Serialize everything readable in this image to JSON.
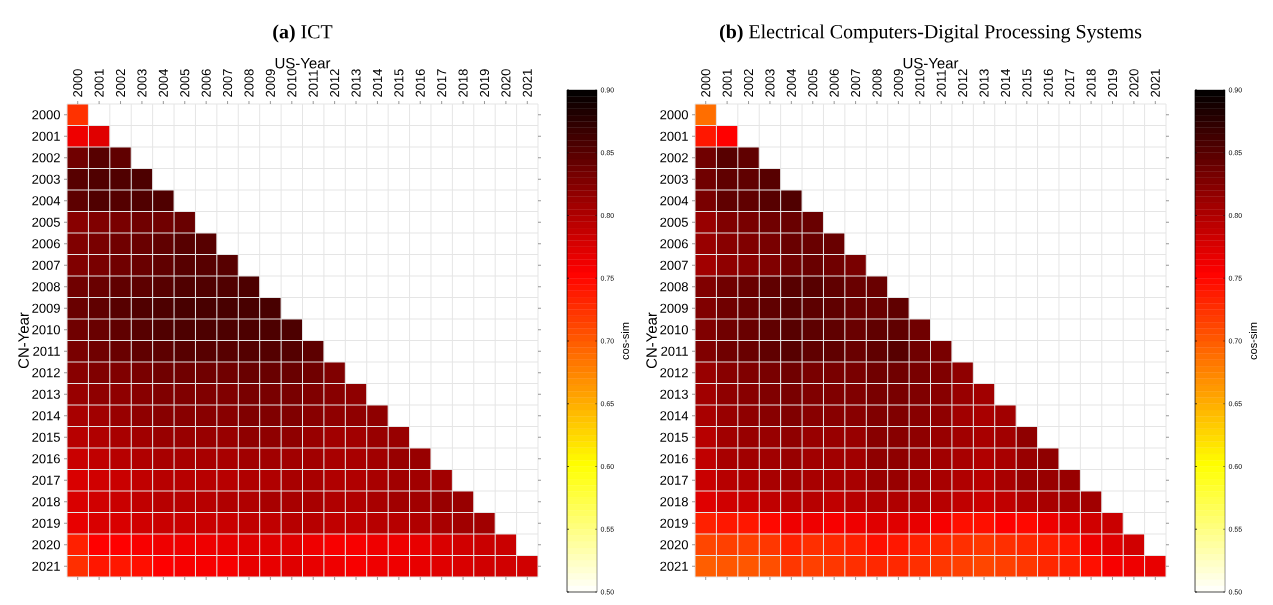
{
  "chart_data": [
    {
      "type": "heatmap",
      "title": "**(a)** ICT",
      "xlabel": "US-Year",
      "ylabel": "CN-Year",
      "clabel": "cos-sim",
      "grid": true,
      "categories": [
        "2000",
        "2001",
        "2002",
        "2003",
        "2004",
        "2005",
        "2006",
        "2007",
        "2008",
        "2009",
        "2010",
        "2011",
        "2012",
        "2013",
        "2014",
        "2015",
        "2016",
        "2017",
        "2018",
        "2019",
        "2020",
        "2021"
      ],
      "y_categories": [
        "2000",
        "2001",
        "2002",
        "2003",
        "2004",
        "2005",
        "2006",
        "2007",
        "2008",
        "2009",
        "2010",
        "2011",
        "2012",
        "2013",
        "2014",
        "2015",
        "2016",
        "2017",
        "2018",
        "2019",
        "2020",
        "2021"
      ],
      "clim": [
        0.5,
        0.9
      ],
      "cticks": [
        {
          "value": 0.5,
          "label": "0.50"
        },
        {
          "value": 0.55,
          "label": "0.55"
        },
        {
          "value": 0.6,
          "label": "0.60"
        },
        {
          "value": 0.65,
          "label": "0.65"
        },
        {
          "value": 0.7,
          "label": "0.70"
        },
        {
          "value": 0.75,
          "label": "0.75"
        },
        {
          "value": 0.8,
          "label": "0.80"
        },
        {
          "value": 0.85,
          "label": "0.85"
        },
        {
          "value": 0.9,
          "label": "0.90"
        }
      ],
      "cells": [
        [
          0.724,
          null,
          null,
          null,
          null,
          null,
          null,
          null,
          null,
          null,
          null,
          null,
          null,
          null,
          null,
          null,
          null,
          null,
          null,
          null,
          null,
          null
        ],
        [
          0.763,
          0.772,
          null,
          null,
          null,
          null,
          null,
          null,
          null,
          null,
          null,
          null,
          null,
          null,
          null,
          null,
          null,
          null,
          null,
          null,
          null,
          null
        ],
        [
          0.836,
          0.85,
          0.845,
          null,
          null,
          null,
          null,
          null,
          null,
          null,
          null,
          null,
          null,
          null,
          null,
          null,
          null,
          null,
          null,
          null,
          null,
          null
        ],
        [
          0.85,
          0.854,
          0.854,
          0.856,
          null,
          null,
          null,
          null,
          null,
          null,
          null,
          null,
          null,
          null,
          null,
          null,
          null,
          null,
          null,
          null,
          null,
          null
        ],
        [
          0.847,
          0.854,
          0.852,
          0.854,
          0.855,
          null,
          null,
          null,
          null,
          null,
          null,
          null,
          null,
          null,
          null,
          null,
          null,
          null,
          null,
          null,
          null,
          null
        ],
        [
          0.822,
          0.827,
          0.831,
          0.836,
          0.836,
          0.84,
          null,
          null,
          null,
          null,
          null,
          null,
          null,
          null,
          null,
          null,
          null,
          null,
          null,
          null,
          null,
          null
        ],
        [
          0.827,
          0.831,
          0.836,
          0.84,
          0.845,
          0.85,
          0.85,
          null,
          null,
          null,
          null,
          null,
          null,
          null,
          null,
          null,
          null,
          null,
          null,
          null,
          null,
          null
        ],
        [
          0.827,
          0.831,
          0.836,
          0.84,
          0.845,
          0.85,
          0.85,
          0.85,
          null,
          null,
          null,
          null,
          null,
          null,
          null,
          null,
          null,
          null,
          null,
          null,
          null,
          null
        ],
        [
          0.836,
          0.84,
          0.845,
          0.847,
          0.85,
          0.854,
          0.854,
          0.854,
          0.856,
          null,
          null,
          null,
          null,
          null,
          null,
          null,
          null,
          null,
          null,
          null,
          null,
          null
        ],
        [
          0.84,
          0.845,
          0.85,
          0.854,
          0.856,
          0.859,
          0.859,
          0.859,
          0.859,
          0.859,
          null,
          null,
          null,
          null,
          null,
          null,
          null,
          null,
          null,
          null,
          null,
          null
        ],
        [
          0.836,
          0.84,
          0.845,
          0.85,
          0.854,
          0.856,
          0.856,
          0.856,
          0.856,
          0.856,
          0.856,
          null,
          null,
          null,
          null,
          null,
          null,
          null,
          null,
          null,
          null,
          null
        ],
        [
          0.831,
          0.836,
          0.84,
          0.845,
          0.847,
          0.85,
          0.85,
          0.85,
          0.852,
          0.852,
          0.852,
          0.847,
          null,
          null,
          null,
          null,
          null,
          null,
          null,
          null,
          null,
          null
        ],
        [
          0.822,
          0.827,
          0.827,
          0.831,
          0.836,
          0.836,
          0.836,
          0.836,
          0.84,
          0.84,
          0.84,
          0.836,
          0.827,
          null,
          null,
          null,
          null,
          null,
          null,
          null,
          null,
          null
        ],
        [
          0.813,
          0.818,
          0.818,
          0.822,
          0.827,
          0.827,
          0.827,
          0.827,
          0.831,
          0.831,
          0.831,
          0.827,
          0.822,
          0.818,
          null,
          null,
          null,
          null,
          null,
          null,
          null,
          null
        ],
        [
          0.804,
          0.808,
          0.813,
          0.818,
          0.822,
          0.822,
          0.822,
          0.822,
          0.827,
          0.827,
          0.827,
          0.822,
          0.818,
          0.818,
          0.818,
          null,
          null,
          null,
          null,
          null,
          null,
          null
        ],
        [
          0.795,
          0.799,
          0.804,
          0.808,
          0.813,
          0.813,
          0.813,
          0.813,
          0.818,
          0.818,
          0.818,
          0.813,
          0.808,
          0.808,
          0.813,
          0.813,
          null,
          null,
          null,
          null,
          null,
          null
        ],
        [
          0.785,
          0.79,
          0.795,
          0.799,
          0.804,
          0.804,
          0.804,
          0.804,
          0.808,
          0.808,
          0.808,
          0.808,
          0.804,
          0.804,
          0.808,
          0.813,
          0.813,
          null,
          null,
          null,
          null,
          null
        ],
        [
          0.776,
          0.781,
          0.785,
          0.79,
          0.795,
          0.795,
          0.795,
          0.795,
          0.799,
          0.799,
          0.804,
          0.804,
          0.799,
          0.799,
          0.804,
          0.808,
          0.808,
          0.808,
          null,
          null,
          null,
          null
        ],
        [
          0.776,
          0.781,
          0.785,
          0.79,
          0.795,
          0.795,
          0.795,
          0.799,
          0.799,
          0.804,
          0.804,
          0.804,
          0.799,
          0.799,
          0.804,
          0.808,
          0.808,
          0.813,
          0.813,
          null,
          null,
          null
        ],
        [
          0.767,
          0.776,
          0.776,
          0.781,
          0.785,
          0.785,
          0.785,
          0.785,
          0.79,
          0.79,
          0.795,
          0.795,
          0.79,
          0.79,
          0.795,
          0.795,
          0.799,
          0.804,
          0.808,
          0.808,
          null,
          null
        ],
        [
          0.735,
          0.754,
          0.754,
          0.758,
          0.763,
          0.763,
          0.763,
          0.767,
          0.772,
          0.772,
          0.772,
          0.763,
          0.758,
          0.758,
          0.763,
          0.763,
          0.767,
          0.776,
          0.781,
          0.785,
          0.785,
          null
        ],
        [
          0.726,
          0.74,
          0.74,
          0.745,
          0.754,
          0.758,
          0.758,
          0.758,
          0.767,
          0.767,
          0.772,
          0.767,
          0.763,
          0.758,
          0.763,
          0.763,
          0.767,
          0.772,
          0.776,
          0.781,
          0.781,
          0.781
        ]
      ]
    },
    {
      "type": "heatmap",
      "title": "**(b)** Electrical Computers-Digital Processing Systems",
      "xlabel": "US-Year",
      "ylabel": "CN-Year",
      "clabel": "cos-sim",
      "grid": true,
      "categories": [
        "2000",
        "2001",
        "2002",
        "2003",
        "2004",
        "2005",
        "2006",
        "2007",
        "2008",
        "2009",
        "2010",
        "2011",
        "2012",
        "2013",
        "2014",
        "2015",
        "2016",
        "2017",
        "2018",
        "2019",
        "2020",
        "2021"
      ],
      "y_categories": [
        "2000",
        "2001",
        "2002",
        "2003",
        "2004",
        "2005",
        "2006",
        "2007",
        "2008",
        "2009",
        "2010",
        "2011",
        "2012",
        "2013",
        "2014",
        "2015",
        "2016",
        "2017",
        "2018",
        "2019",
        "2020",
        "2021"
      ],
      "clim": [
        0.5,
        0.9
      ],
      "cticks": [
        {
          "value": 0.5,
          "label": "0.50"
        },
        {
          "value": 0.55,
          "label": "0.55"
        },
        {
          "value": 0.6,
          "label": "0.60"
        },
        {
          "value": 0.65,
          "label": "0.65"
        },
        {
          "value": 0.7,
          "label": "0.70"
        },
        {
          "value": 0.75,
          "label": "0.75"
        },
        {
          "value": 0.8,
          "label": "0.80"
        },
        {
          "value": 0.85,
          "label": "0.85"
        },
        {
          "value": 0.9,
          "label": "0.90"
        }
      ],
      "cells": [
        [
          0.688,
          null,
          null,
          null,
          null,
          null,
          null,
          null,
          null,
          null,
          null,
          null,
          null,
          null,
          null,
          null,
          null,
          null,
          null,
          null,
          null,
          null
        ],
        [
          0.74,
          0.754,
          null,
          null,
          null,
          null,
          null,
          null,
          null,
          null,
          null,
          null,
          null,
          null,
          null,
          null,
          null,
          null,
          null,
          null,
          null,
          null
        ],
        [
          0.836,
          0.85,
          0.845,
          null,
          null,
          null,
          null,
          null,
          null,
          null,
          null,
          null,
          null,
          null,
          null,
          null,
          null,
          null,
          null,
          null,
          null,
          null
        ],
        [
          0.836,
          0.845,
          0.845,
          0.85,
          null,
          null,
          null,
          null,
          null,
          null,
          null,
          null,
          null,
          null,
          null,
          null,
          null,
          null,
          null,
          null,
          null,
          null
        ],
        [
          0.831,
          0.845,
          0.845,
          0.85,
          0.854,
          null,
          null,
          null,
          null,
          null,
          null,
          null,
          null,
          null,
          null,
          null,
          null,
          null,
          null,
          null,
          null,
          null
        ],
        [
          0.813,
          0.827,
          0.831,
          0.836,
          0.84,
          0.84,
          null,
          null,
          null,
          null,
          null,
          null,
          null,
          null,
          null,
          null,
          null,
          null,
          null,
          null,
          null,
          null
        ],
        [
          0.813,
          0.822,
          0.827,
          0.831,
          0.84,
          0.84,
          0.84,
          null,
          null,
          null,
          null,
          null,
          null,
          null,
          null,
          null,
          null,
          null,
          null,
          null,
          null,
          null
        ],
        [
          0.808,
          0.818,
          0.822,
          0.827,
          0.836,
          0.84,
          0.836,
          0.831,
          null,
          null,
          null,
          null,
          null,
          null,
          null,
          null,
          null,
          null,
          null,
          null,
          null,
          null
        ],
        [
          0.827,
          0.836,
          0.84,
          0.845,
          0.85,
          0.85,
          0.845,
          0.84,
          0.84,
          null,
          null,
          null,
          null,
          null,
          null,
          null,
          null,
          null,
          null,
          null,
          null,
          null
        ],
        [
          0.827,
          0.836,
          0.84,
          0.845,
          0.85,
          0.847,
          0.845,
          0.84,
          0.84,
          0.845,
          null,
          null,
          null,
          null,
          null,
          null,
          null,
          null,
          null,
          null,
          null,
          null
        ],
        [
          0.827,
          0.836,
          0.84,
          0.845,
          0.85,
          0.847,
          0.845,
          0.84,
          0.845,
          0.845,
          0.836,
          null,
          null,
          null,
          null,
          null,
          null,
          null,
          null,
          null,
          null,
          null
        ],
        [
          0.827,
          0.836,
          0.84,
          0.845,
          0.85,
          0.845,
          0.845,
          0.84,
          0.845,
          0.85,
          0.836,
          0.831,
          null,
          null,
          null,
          null,
          null,
          null,
          null,
          null,
          null,
          null
        ],
        [
          0.813,
          0.822,
          0.827,
          0.831,
          0.836,
          0.831,
          0.831,
          0.831,
          0.836,
          0.836,
          0.831,
          0.827,
          0.818,
          null,
          null,
          null,
          null,
          null,
          null,
          null,
          null,
          null
        ],
        [
          0.808,
          0.818,
          0.822,
          0.827,
          0.831,
          0.827,
          0.827,
          0.827,
          0.831,
          0.831,
          0.827,
          0.822,
          0.813,
          0.808,
          null,
          null,
          null,
          null,
          null,
          null,
          null,
          null
        ],
        [
          0.804,
          0.813,
          0.818,
          0.822,
          0.827,
          0.822,
          0.822,
          0.822,
          0.827,
          0.827,
          0.822,
          0.818,
          0.808,
          0.804,
          0.808,
          null,
          null,
          null,
          null,
          null,
          null,
          null
        ],
        [
          0.795,
          0.808,
          0.813,
          0.813,
          0.818,
          0.813,
          0.813,
          0.813,
          0.822,
          0.822,
          0.818,
          0.813,
          0.808,
          0.804,
          0.808,
          0.818,
          null,
          null,
          null,
          null,
          null,
          null
        ],
        [
          0.79,
          0.804,
          0.808,
          0.808,
          0.813,
          0.808,
          0.808,
          0.808,
          0.818,
          0.818,
          0.813,
          0.808,
          0.804,
          0.799,
          0.804,
          0.813,
          0.818,
          null,
          null,
          null,
          null,
          null
        ],
        [
          0.785,
          0.795,
          0.799,
          0.804,
          0.808,
          0.804,
          0.804,
          0.804,
          0.813,
          0.813,
          0.808,
          0.804,
          0.799,
          0.795,
          0.804,
          0.813,
          0.813,
          0.813,
          null,
          null,
          null,
          null
        ],
        [
          0.772,
          0.781,
          0.785,
          0.79,
          0.795,
          0.795,
          0.79,
          0.795,
          0.799,
          0.799,
          0.799,
          0.795,
          0.79,
          0.785,
          0.79,
          0.799,
          0.804,
          0.804,
          0.808,
          null,
          null,
          null
        ],
        [
          0.735,
          0.74,
          0.74,
          0.749,
          0.763,
          0.763,
          0.758,
          0.763,
          0.772,
          0.772,
          0.767,
          0.758,
          0.745,
          0.745,
          0.754,
          0.749,
          0.763,
          0.772,
          0.781,
          0.785,
          null,
          null
        ],
        [
          0.712,
          0.716,
          0.716,
          0.721,
          0.735,
          0.726,
          0.73,
          0.735,
          0.745,
          0.74,
          0.735,
          0.73,
          0.726,
          0.721,
          0.726,
          0.73,
          0.735,
          0.74,
          0.763,
          0.772,
          0.781,
          null
        ],
        [
          0.698,
          0.702,
          0.702,
          0.707,
          0.721,
          0.716,
          0.721,
          0.726,
          0.73,
          0.73,
          0.726,
          0.721,
          0.716,
          0.712,
          0.716,
          0.721,
          0.73,
          0.735,
          0.745,
          0.758,
          0.763,
          0.767
        ]
      ]
    }
  ]
}
